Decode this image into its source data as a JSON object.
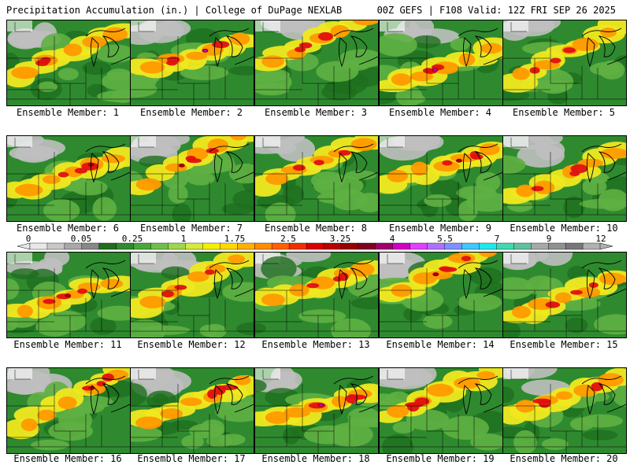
{
  "header": {
    "left_title": "Precipitation Accumulation (in.) | College of DuPage NEXLAB",
    "right_title": "00Z GEFS | F108 Valid: 12Z FRI SEP 26 2025"
  },
  "panels": [
    {
      "caption": "Ensemble Member: 1"
    },
    {
      "caption": "Ensemble Member: 2"
    },
    {
      "caption": "Ensemble Member: 3"
    },
    {
      "caption": "Ensemble Member: 4"
    },
    {
      "caption": "Ensemble Member: 5"
    },
    {
      "caption": "Ensemble Member: 6"
    },
    {
      "caption": "Ensemble Member: 7"
    },
    {
      "caption": "Ensemble Member: 8"
    },
    {
      "caption": "Ensemble Member: 9"
    },
    {
      "caption": "Ensemble Member: 10"
    },
    {
      "caption": "Ensemble Member: 11"
    },
    {
      "caption": "Ensemble Member: 12"
    },
    {
      "caption": "Ensemble Member: 13"
    },
    {
      "caption": "Ensemble Member: 14"
    },
    {
      "caption": "Ensemble Member: 15"
    },
    {
      "caption": "Ensemble Member: 16"
    },
    {
      "caption": "Ensemble Member: 17"
    },
    {
      "caption": "Ensemble Member: 18"
    },
    {
      "caption": "Ensemble Member: 19"
    },
    {
      "caption": "Ensemble Member: 20"
    }
  ],
  "colorbar": {
    "labels": [
      "0",
      "0.05",
      "0.25",
      "1",
      "1.75",
      "2.5",
      "3.25",
      "4",
      "5.5",
      "7",
      "9",
      "12"
    ],
    "colors": [
      "#e8e8e8",
      "#c8c8c8",
      "#a8a8a8",
      "#888888",
      "#1e6e1e",
      "#2f8a2f",
      "#48a83a",
      "#6fc04a",
      "#9ed64e",
      "#d8e83c",
      "#f4f000",
      "#ffd800",
      "#ffb000",
      "#ff8c00",
      "#ff6000",
      "#f03000",
      "#d80000",
      "#b80000",
      "#980000",
      "#800020",
      "#a0006a",
      "#d000c0",
      "#e040ff",
      "#b070ff",
      "#8090ff",
      "#40c8ff",
      "#20e8e8",
      "#40d8b0",
      "#60c0a0",
      "#a8a8a8",
      "#909090",
      "#787878",
      "#b0b0b0"
    ]
  },
  "palette": {
    "gray": "#bfbfbf",
    "dark_green": "#1e6e1e",
    "green": "#2f8a2f",
    "light_green": "#5fb043",
    "yellow": "#f0e820",
    "orange": "#ff9a00",
    "red": "#e01010",
    "dark_red": "#a00000",
    "magenta": "#c000c0"
  }
}
